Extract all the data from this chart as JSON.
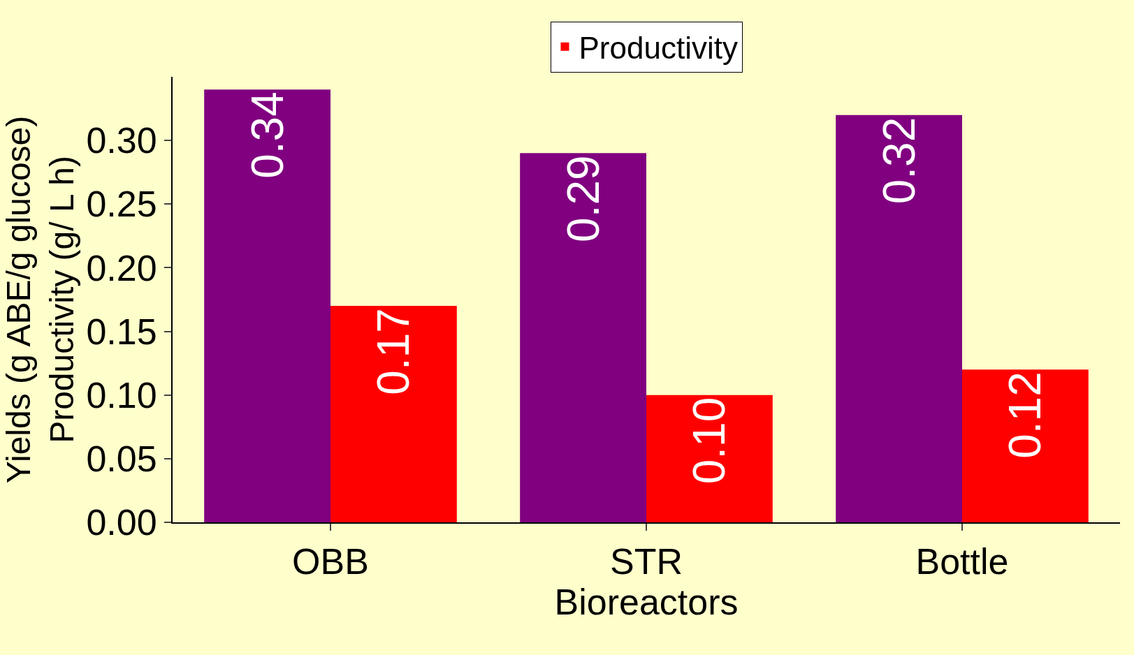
{
  "chart_data": {
    "type": "bar",
    "xlabel": "Bioreactors",
    "ylabel": "Yields (g ABE/g glucose)\nProductivity (g/ L h)",
    "categories": [
      "OBB",
      "STR",
      "Bottle"
    ],
    "series": [
      {
        "color": "#800080",
        "values": [
          0.34,
          0.29,
          0.32
        ]
      },
      {
        "name": "Productivity",
        "color": "#ff0000",
        "values": [
          0.17,
          0.1,
          0.12
        ]
      }
    ],
    "value_labels": [
      [
        "0.34",
        "0.29",
        "0.32"
      ],
      [
        "0.17",
        "0.10",
        "0.12"
      ]
    ],
    "ylim": [
      0,
      0.35
    ],
    "yticks": [
      {
        "value": 0,
        "label": "0.00"
      },
      {
        "value": 0.05,
        "label": "0.05"
      },
      {
        "value": 0.1,
        "label": "0.10"
      },
      {
        "value": 0.15,
        "label": "0.15"
      },
      {
        "value": 0.2,
        "label": "0.20"
      },
      {
        "value": 0.25,
        "label": "0.25"
      },
      {
        "value": 0.3,
        "label": "0.30"
      }
    ],
    "legend": "top",
    "grid": false
  }
}
